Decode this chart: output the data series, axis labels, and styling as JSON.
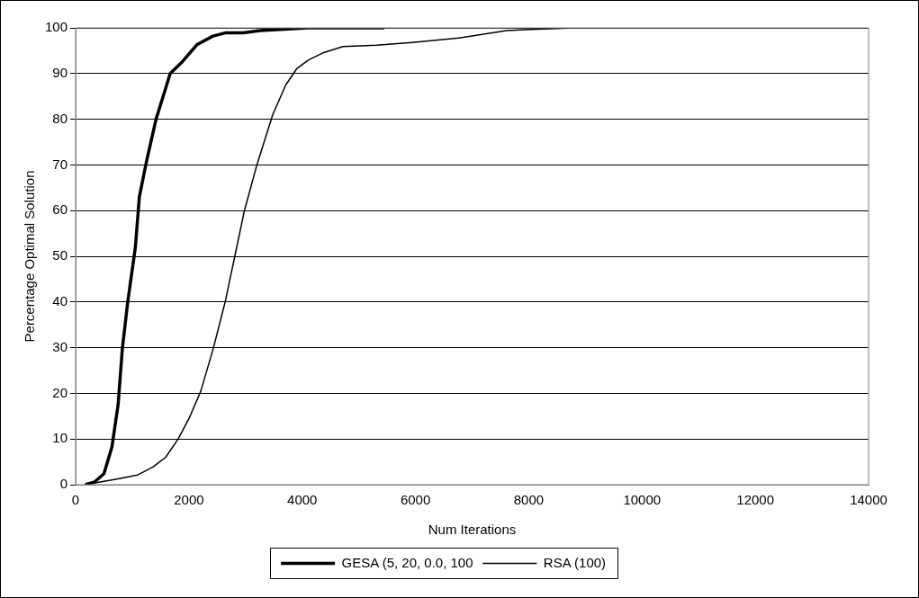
{
  "chart_data": {
    "type": "line",
    "xlabel": "Num Iterations",
    "ylabel": "Percentage Optimal Solution",
    "xlim": [
      0,
      14000
    ],
    "xticks": [
      0,
      2000,
      4000,
      6000,
      8000,
      10000,
      12000,
      14000
    ],
    "ylim": [
      0,
      100
    ],
    "yticks": [
      0,
      10,
      20,
      30,
      40,
      50,
      60,
      70,
      80,
      90,
      100
    ],
    "grid": "y",
    "legend": "bottom",
    "marker": "none",
    "line_style": "solid",
    "series": [
      {
        "name": "GESA (5, 20, 0.0, 100",
        "color": "#000000",
        "x": [
          170,
          335,
          500,
          640,
          750,
          825,
          920,
          1055,
          1125,
          1255,
          1420,
          1670,
          1870,
          2140,
          2425,
          2640,
          2960,
          3260,
          4100,
          5450
        ],
        "values": [
          0,
          0.6,
          2.4,
          8.2,
          17.5,
          29.8,
          40,
          52,
          63,
          71,
          80,
          90,
          92.4,
          96.3,
          98.2,
          98.9,
          98.9,
          99.4,
          100,
          100
        ]
      },
      {
        "name": "RSA (100)",
        "color": "#000000",
        "x": [
          250,
          750,
          1090,
          1370,
          1590,
          1810,
          2010,
          2210,
          2430,
          2640,
          2810,
          2980,
          3200,
          3480,
          3710,
          3900,
          4100,
          4380,
          4720,
          5320,
          5940,
          6770,
          7610,
          7940,
          8810,
          13000
        ],
        "values": [
          0.2,
          1.3,
          2.1,
          3.9,
          6,
          10,
          14.7,
          20.5,
          29.8,
          40,
          50,
          60,
          70,
          81,
          87.5,
          91,
          92.9,
          94.6,
          95.9,
          96.2,
          96.8,
          97.8,
          99.4,
          99.6,
          100,
          100
        ]
      }
    ]
  }
}
